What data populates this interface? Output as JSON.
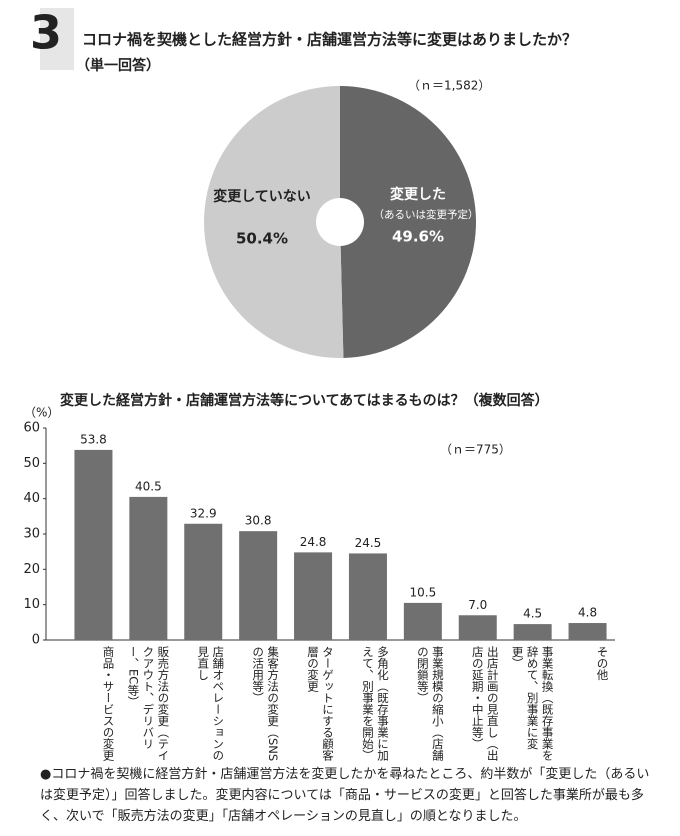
{
  "header": {
    "number": "3"
  },
  "chart_data": [
    {
      "type": "pie",
      "title": "コロナ禍を契機とした経営方針・店舗運営方法等に変更はありましたか？",
      "subtitle": "（単一回答）",
      "note": "（ｎ＝1,582）",
      "categories": [
        "変更した",
        "変更していない"
      ],
      "category_note": "（あるいは変更予定）",
      "values": [
        49.6,
        50.4
      ],
      "value_labels": [
        "49.6%",
        "50.4%"
      ],
      "colors": [
        "#666666",
        "#cccccc"
      ]
    },
    {
      "type": "bar",
      "title": "変更した経営方針・店舗運営方法等についてあてはまるものは？（複数回答）",
      "y_label": "（%）",
      "note": "（ｎ＝775）",
      "categories": [
        "商品・サービスの変更",
        "販売方法の変更（テイクアウト、デリバリー、EC等）",
        "店舗オペレーションの見直し",
        "集客方法の変更（SNSの活用等）",
        "ターゲットにする顧客層の変更",
        "多角化（既存事業に加えて、別事業を開始）",
        "事業規模の縮小（店舗の閉鎖等）",
        "出店計画の見直し（出店の延期・中止等）",
        "事業転換（既存事業を辞めて、別事業に変更）",
        "その他"
      ],
      "values": [
        53.8,
        40.5,
        32.9,
        30.8,
        24.8,
        24.5,
        10.5,
        7.0,
        4.5,
        4.8
      ],
      "value_labels": [
        "53.8",
        "40.5",
        "32.9",
        "30.8",
        "24.8",
        "24.5",
        "10.5",
        "7.0",
        "4.5",
        "4.8"
      ],
      "color": "#707070",
      "ylim": [
        0,
        60
      ],
      "yticks": [
        0,
        10,
        20,
        30,
        40,
        50,
        60
      ]
    }
  ],
  "footnote": "●コロナ禍を契機に経営方針・店舗運営方法を変更したかを尋ねたところ、約半数が「変更した（あるいは変更予定）」回答しました。変更内容については「商品・サービスの変更」と回答した事業所が最も多く、次いで「販売方法の変更」「店舗オペレーションの見直し」の順となりました。"
}
